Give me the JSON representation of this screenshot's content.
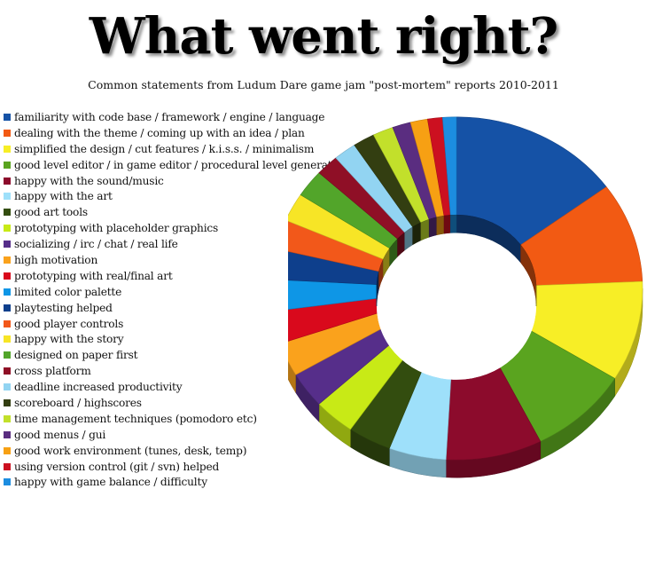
{
  "title": "What went right?",
  "subtitle": "Common statements from Ludum Dare game jam \"post-mortem\" reports 2010-2011",
  "chart_data": {
    "type": "pie",
    "style": "3d-donut",
    "title": "What went right?",
    "subtitle": "Common statements from Ludum Dare game jam \"post-mortem\" reports 2010-2011",
    "legend_position": "left",
    "slices": [
      {
        "label": "familiarity with code base / framework / engine / language",
        "value": 15.0,
        "color": "#1552a6"
      },
      {
        "label": "dealing with the theme / coming up with an idea / plan",
        "value": 9.5,
        "color": "#f25a13"
      },
      {
        "label": "simplified the design / cut features / k.i.s.s. / minimalism",
        "value": 9.5,
        "color": "#f7ee26"
      },
      {
        "label": "good level editor / in game editor / procedural level generation",
        "value": 8.8,
        "color": "#5aa41f"
      },
      {
        "label": "happy with the sound/music",
        "value": 8.4,
        "color": "#8c0b2c"
      },
      {
        "label": "happy with the art",
        "value": 5.0,
        "color": "#9ee0fa"
      },
      {
        "label": "good art tools",
        "value": 3.8,
        "color": "#334d0f"
      },
      {
        "label": "prototyping with placeholder graphics",
        "value": 3.6,
        "color": "#c8ea16"
      },
      {
        "label": "socializing / irc / chat / real life",
        "value": 3.4,
        "color": "#562e8a"
      },
      {
        "label": "high motivation",
        "value": 3.2,
        "color": "#faa21c"
      },
      {
        "label": "prototyping with real/final art",
        "value": 3.1,
        "color": "#d9091c"
      },
      {
        "label": "limited color palette",
        "value": 3.0,
        "color": "#0e96e6"
      },
      {
        "label": "playtesting helped",
        "value": 2.9,
        "color": "#0e3f8c"
      },
      {
        "label": "good player controls",
        "value": 2.8,
        "color": "#f2581a"
      },
      {
        "label": "happy with the story",
        "value": 2.7,
        "color": "#f7e526"
      },
      {
        "label": "designed on paper first",
        "value": 2.6,
        "color": "#52a52a"
      },
      {
        "label": "cross platform",
        "value": 2.0,
        "color": "#8f0f26"
      },
      {
        "label": "deadline increased productivity",
        "value": 2.0,
        "color": "#92d4f2"
      },
      {
        "label": "scoreboard / highscores",
        "value": 1.9,
        "color": "#333e11"
      },
      {
        "label": "time management techniques (pomodoro etc)",
        "value": 1.8,
        "color": "#c2e02b"
      },
      {
        "label": "good menus / gui",
        "value": 1.6,
        "color": "#5a2d80"
      },
      {
        "label": "good work environment (tunes, desk, temp)",
        "value": 1.5,
        "color": "#f7a013"
      },
      {
        "label": "using version control (git / svn) helped",
        "value": 1.3,
        "color": "#cc1020"
      },
      {
        "label": "happy with game balance / difficulty",
        "value": 1.2,
        "color": "#1c8de0"
      }
    ]
  }
}
